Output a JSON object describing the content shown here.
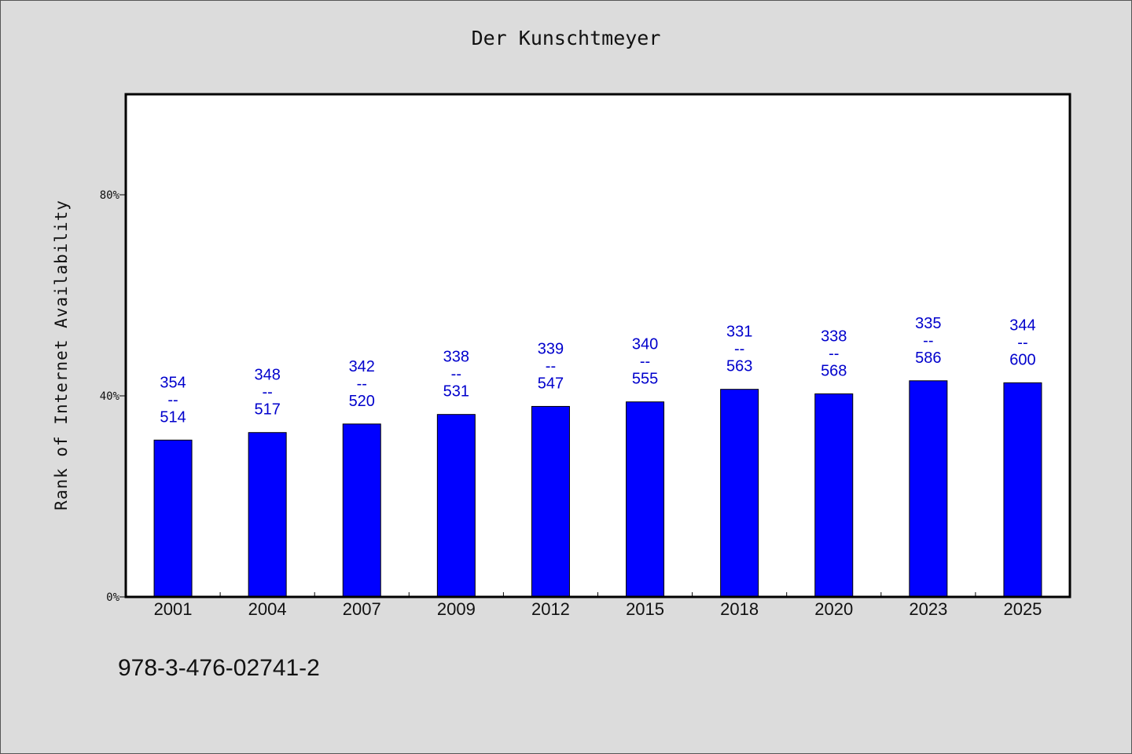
{
  "chart_data": {
    "type": "bar",
    "title": "Der Kunschtmeyer",
    "ylabel": "Rank of Internet Availability",
    "xlabel": "",
    "categories": [
      "2001",
      "2004",
      "2007",
      "2009",
      "2012",
      "2015",
      "2018",
      "2020",
      "2023",
      "2025"
    ],
    "values": [
      31.2,
      32.7,
      34.4,
      36.3,
      37.9,
      38.8,
      41.3,
      40.4,
      43.0,
      42.6
    ],
    "data_labels": [
      [
        "354",
        "--",
        "514"
      ],
      [
        "348",
        "--",
        "517"
      ],
      [
        "342",
        "--",
        "520"
      ],
      [
        "338",
        "--",
        "531"
      ],
      [
        "339",
        "--",
        "547"
      ],
      [
        "340",
        "--",
        "555"
      ],
      [
        "331",
        "--",
        "563"
      ],
      [
        "338",
        "--",
        "568"
      ],
      [
        "335",
        "--",
        "586"
      ],
      [
        "344",
        "--",
        "600"
      ]
    ],
    "ylim": [
      0,
      100
    ],
    "yticks": [
      0,
      40,
      80
    ],
    "ytick_labels": [
      "0%",
      "40%",
      "80%"
    ],
    "grid": false,
    "legend": "none",
    "colors": {
      "bar": "#0000ff",
      "bar_edge": "#000000",
      "data_label": "#0000cc",
      "plot_background": "#ffffff",
      "page_background": "#dcdcdc"
    }
  },
  "footnote": "978-3-476-02741-2"
}
